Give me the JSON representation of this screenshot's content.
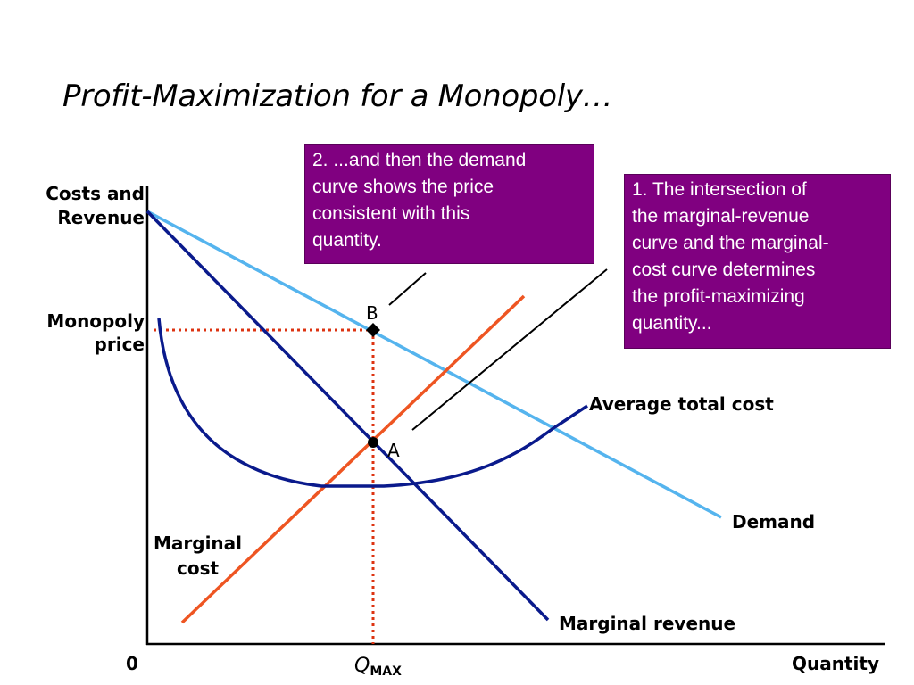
{
  "title": "Profit-Maximization for a Monopoly…",
  "diagram": {
    "y_axis_label": [
      "Costs and",
      "Revenue"
    ],
    "monopoly_price_label": [
      "Monopoly",
      "price"
    ],
    "origin_label": "0",
    "x_axis_label": "Quantity",
    "qmax_label": {
      "main": "Q",
      "sub": "MAX"
    },
    "point_a": "A",
    "point_b": "B",
    "curves": {
      "demand": "Demand",
      "marginal_revenue": "Marginal revenue",
      "marginal_cost": [
        "Marginal",
        "cost"
      ],
      "average_total_cost": "Average total cost"
    },
    "colors": {
      "demand": "#55b4ee",
      "marginal_revenue": "#0a1a8c",
      "marginal_cost": "#ee5522",
      "average_total_cost": "#0a1a8c",
      "guide_lines": "#dd3311",
      "callout_box": "#800080"
    }
  },
  "callouts": {
    "box1": [
      "1. The intersection of",
      "the marginal-revenue",
      "curve and the marginal-",
      "cost curve determines",
      "the profit-maximizing",
      "quantity..."
    ],
    "box2": [
      "2. ...and then the demand",
      "curve shows the price",
      "consistent with this",
      "quantity."
    ]
  }
}
